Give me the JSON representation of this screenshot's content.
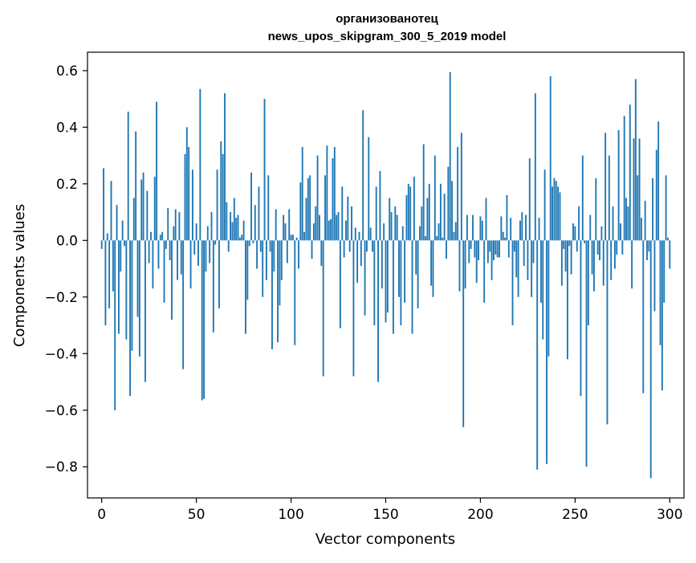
{
  "chart_data": {
    "type": "bar",
    "title_lines": [
      "организованотец",
      "news_upos_skipgram_300_5_2019 model"
    ],
    "xlabel": "Vector components",
    "ylabel": "Components values",
    "xlim": [
      -7.5,
      307.5
    ],
    "ylim": [
      -0.91,
      0.665
    ],
    "xticks": [
      0,
      50,
      100,
      150,
      200,
      250,
      300
    ],
    "xtick_labels": [
      "0",
      "50",
      "100",
      "150",
      "200",
      "250",
      "300"
    ],
    "yticks": [
      0.6,
      0.4,
      0.2,
      0.0,
      -0.2,
      -0.4,
      -0.6,
      -0.8
    ],
    "ytick_labels": [
      "0.6",
      "0.4",
      "0.2",
      "0.0",
      "−0.2",
      "−0.4",
      "−0.6",
      "−0.8"
    ],
    "grid": false,
    "bar_color": "#1f77b4",
    "values": [
      -0.03,
      0.255,
      -0.3,
      0.025,
      -0.24,
      0.21,
      -0.18,
      -0.6,
      0.125,
      -0.33,
      -0.11,
      0.07,
      -0.02,
      -0.35,
      0.455,
      -0.55,
      -0.39,
      0.15,
      0.385,
      -0.27,
      -0.41,
      0.215,
      0.24,
      -0.5,
      0.175,
      -0.08,
      0.03,
      -0.17,
      0.225,
      0.49,
      -0.1,
      0.02,
      0.03,
      -0.22,
      -0.03,
      0.115,
      -0.07,
      -0.28,
      0.05,
      0.11,
      -0.14,
      0.1,
      -0.12,
      -0.455,
      0.305,
      0.4,
      0.33,
      -0.17,
      0.25,
      -0.05,
      0.06,
      -0.09,
      0.535,
      -0.565,
      -0.56,
      -0.11,
      0.05,
      -0.08,
      0.1,
      -0.325,
      -0.015,
      0.25,
      -0.24,
      0.35,
      0.305,
      0.52,
      0.135,
      -0.04,
      0.1,
      0.065,
      0.15,
      0.08,
      0.09,
      0.01,
      0.02,
      0.07,
      -0.33,
      -0.21,
      -0.02,
      0.24,
      -0.01,
      0.125,
      -0.1,
      0.19,
      -0.04,
      -0.2,
      0.5,
      -0.14,
      0.23,
      -0.04,
      -0.385,
      -0.11,
      0.11,
      -0.36,
      -0.23,
      -0.14,
      0.09,
      0.06,
      -0.08,
      0.11,
      0.02,
      0.02,
      -0.37,
      0.01,
      -0.1,
      0.205,
      0.33,
      0.03,
      0.15,
      0.22,
      0.23,
      -0.065,
      0.06,
      0.12,
      0.3,
      0.09,
      -0.09,
      -0.48,
      0.23,
      0.335,
      0.07,
      0.075,
      0.29,
      0.33,
      0.09,
      0.1,
      -0.31,
      0.19,
      -0.06,
      0.07,
      0.155,
      -0.04,
      0.12,
      -0.48,
      0.045,
      -0.15,
      0.03,
      -0.09,
      0.46,
      -0.265,
      -0.04,
      0.365,
      0.045,
      -0.04,
      -0.3,
      0.19,
      -0.5,
      0.245,
      -0.17,
      0.06,
      -0.29,
      -0.255,
      0.15,
      0.1,
      -0.33,
      0.12,
      0.09,
      -0.2,
      -0.3,
      0.05,
      -0.22,
      0.16,
      0.2,
      0.19,
      -0.33,
      0.225,
      -0.12,
      -0.24,
      0.05,
      0.12,
      0.34,
      0.015,
      0.15,
      0.2,
      -0.16,
      -0.2,
      0.3,
      0.015,
      0.06,
      0.2,
      0.01,
      0.165,
      -0.065,
      0.26,
      0.595,
      0.21,
      0.03,
      0.065,
      0.33,
      -0.18,
      0.38,
      -0.66,
      -0.17,
      0.09,
      -0.08,
      -0.03,
      0.09,
      -0.06,
      -0.15,
      -0.07,
      0.085,
      0.07,
      -0.22,
      0.15,
      -0.08,
      -0.04,
      -0.14,
      -0.07,
      -0.05,
      -0.06,
      -0.06,
      0.085,
      0.03,
      0.01,
      0.16,
      -0.06,
      0.08,
      -0.3,
      -0.04,
      -0.13,
      -0.2,
      0.07,
      0.1,
      -0.09,
      0.09,
      -0.14,
      0.29,
      -0.2,
      -0.08,
      0.52,
      -0.81,
      0.08,
      -0.22,
      -0.35,
      0.25,
      -0.79,
      -0.41,
      0.58,
      0.19,
      0.22,
      0.21,
      0.19,
      0.17,
      -0.16,
      -0.03,
      -0.11,
      -0.42,
      -0.02,
      -0.12,
      0.06,
      0.05,
      -0.04,
      0.12,
      -0.55,
      0.3,
      -0.01,
      -0.8,
      -0.3,
      0.09,
      -0.12,
      -0.18,
      0.22,
      -0.05,
      -0.07,
      0.05,
      -0.16,
      0.38,
      -0.65,
      0.3,
      -0.14,
      0.12,
      -0.1,
      -0.05,
      0.39,
      0.06,
      -0.05,
      0.44,
      0.15,
      0.12,
      0.48,
      -0.17,
      0.36,
      0.57,
      0.23,
      0.36,
      0.08,
      -0.54,
      0.14,
      -0.07,
      -0.04,
      -0.84,
      0.22,
      -0.25,
      0.32,
      0.42,
      -0.37,
      -0.53,
      -0.22,
      0.23,
      0.01,
      -0.1
    ]
  }
}
